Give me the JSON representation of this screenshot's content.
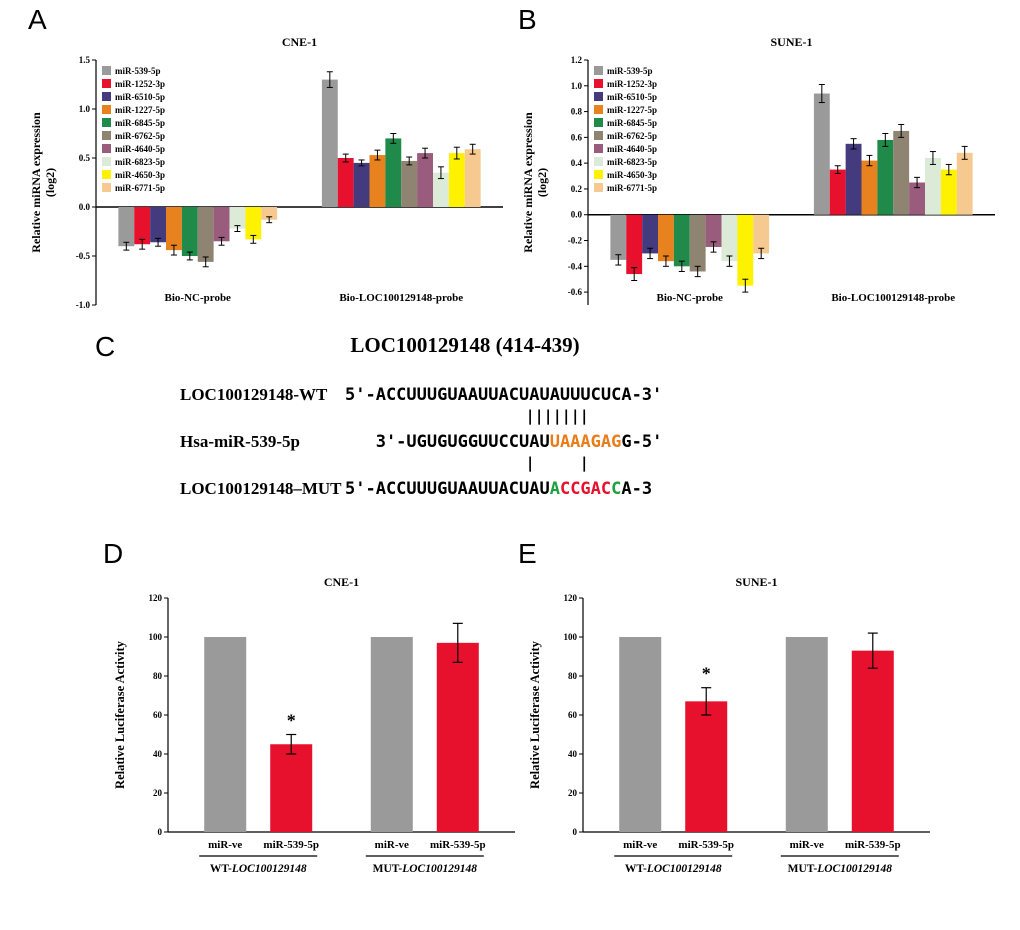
{
  "panel_labels": {
    "A": "A",
    "B": "B",
    "C": "C",
    "D": "D",
    "E": "E"
  },
  "colors": {
    "gray": "#9a9a9a",
    "red": "#e8112d",
    "indigo": "#443b7e",
    "orange": "#e8821e",
    "green": "#1f8a4a",
    "taupe": "#8f8472",
    "plum": "#9a5c7c",
    "palegreen": "#dcead8",
    "yellow": "#fff200",
    "peach": "#f6c990",
    "seq_orange": "#e87d1a",
    "seq_green": "#1aa23c",
    "seq_red": "#e8112d"
  },
  "chart_data": [
    {
      "id": "A",
      "type": "bar",
      "title": "CNE-1",
      "ylabel_line1": "Relative miRNA expression",
      "ylabel_line2": "(log2)",
      "ylim": [
        -1.0,
        1.5
      ],
      "yticks": [
        -1.0,
        -0.5,
        0.0,
        0.5,
        1.0,
        1.5
      ],
      "groups": [
        "Bio-NC-probe",
        "Bio-LOC100129148-probe"
      ],
      "legend_position": "top-left",
      "grid": false,
      "series": [
        {
          "name": "miR-539-5p",
          "color": "#9a9a9a",
          "values": [
            -0.4,
            1.3
          ],
          "errors": [
            0.04,
            0.08
          ]
        },
        {
          "name": "miR-1252-3p",
          "color": "#e8112d",
          "values": [
            -0.38,
            0.5
          ],
          "errors": [
            0.05,
            0.04
          ]
        },
        {
          "name": "miR-6510-5p",
          "color": "#443b7e",
          "values": [
            -0.36,
            0.45
          ],
          "errors": [
            0.04,
            0.03
          ]
        },
        {
          "name": "miR-1227-5p",
          "color": "#e8821e",
          "values": [
            -0.44,
            0.53
          ],
          "errors": [
            0.05,
            0.05
          ]
        },
        {
          "name": "miR-6845-5p",
          "color": "#1f8a4a",
          "values": [
            -0.5,
            0.7
          ],
          "errors": [
            0.04,
            0.05
          ]
        },
        {
          "name": "miR-6762-5p",
          "color": "#8f8472",
          "values": [
            -0.56,
            0.47
          ],
          "errors": [
            0.05,
            0.04
          ]
        },
        {
          "name": "miR-4640-5p",
          "color": "#9a5c7c",
          "values": [
            -0.35,
            0.55
          ],
          "errors": [
            0.04,
            0.05
          ]
        },
        {
          "name": "miR-6823-5p",
          "color": "#dcead8",
          "values": [
            -0.22,
            0.35
          ],
          "errors": [
            0.03,
            0.06
          ]
        },
        {
          "name": "miR-4650-3p",
          "color": "#fff200",
          "values": [
            -0.33,
            0.55
          ],
          "errors": [
            0.04,
            0.06
          ]
        },
        {
          "name": "miR-6771-5p",
          "color": "#f6c990",
          "values": [
            -0.13,
            0.59
          ],
          "errors": [
            0.03,
            0.05
          ]
        }
      ]
    },
    {
      "id": "B",
      "type": "bar",
      "title": "SUNE-1",
      "ylabel_line1": "Relative miRNA expression",
      "ylabel_line2": "(log2)",
      "ylim": [
        -0.7,
        1.2
      ],
      "yticks": [
        -0.6,
        -0.4,
        -0.2,
        0.0,
        0.2,
        0.4,
        0.6,
        0.8,
        1.0,
        1.2
      ],
      "groups": [
        "Bio-NC-probe",
        "Bio-LOC100129148-probe"
      ],
      "legend_position": "top-left",
      "grid": false,
      "series": [
        {
          "name": "miR-539-5p",
          "color": "#9a9a9a",
          "values": [
            -0.35,
            0.94
          ],
          "errors": [
            0.04,
            0.07
          ]
        },
        {
          "name": "miR-1252-3p",
          "color": "#e8112d",
          "values": [
            -0.46,
            0.35
          ],
          "errors": [
            0.05,
            0.03
          ]
        },
        {
          "name": "miR-6510-5p",
          "color": "#443b7e",
          "values": [
            -0.3,
            0.55
          ],
          "errors": [
            0.04,
            0.04
          ]
        },
        {
          "name": "miR-1227-5p",
          "color": "#e8821e",
          "values": [
            -0.36,
            0.42
          ],
          "errors": [
            0.04,
            0.04
          ]
        },
        {
          "name": "miR-6845-5p",
          "color": "#1f8a4a",
          "values": [
            -0.4,
            0.58
          ],
          "errors": [
            0.04,
            0.05
          ]
        },
        {
          "name": "miR-6762-5p",
          "color": "#8f8472",
          "values": [
            -0.44,
            0.65
          ],
          "errors": [
            0.04,
            0.05
          ]
        },
        {
          "name": "miR-4640-5p",
          "color": "#9a5c7c",
          "values": [
            -0.25,
            0.25
          ],
          "errors": [
            0.04,
            0.04
          ]
        },
        {
          "name": "miR-6823-5p",
          "color": "#dcead8",
          "values": [
            -0.36,
            0.44
          ],
          "errors": [
            0.04,
            0.05
          ]
        },
        {
          "name": "miR-4650-3p",
          "color": "#fff200",
          "values": [
            -0.55,
            0.35
          ],
          "errors": [
            0.05,
            0.04
          ]
        },
        {
          "name": "miR-6771-5p",
          "color": "#f6c990",
          "values": [
            -0.3,
            0.48
          ],
          "errors": [
            0.04,
            0.05
          ]
        }
      ]
    },
    {
      "id": "D",
      "type": "bar",
      "title": "CNE-1",
      "ylabel": "Relative Luciferase Activity",
      "ylim": [
        0,
        120
      ],
      "yticks": [
        0,
        20,
        40,
        60,
        80,
        100,
        120
      ],
      "groups": [
        {
          "prefix": "WT-",
          "gene": "LOC100129148"
        },
        {
          "prefix": "MUT-",
          "gene": "LOC100129148"
        }
      ],
      "bars": [
        {
          "label": "miR-ve",
          "value": 100,
          "error": 0,
          "color": "#9a9a9a",
          "sig": ""
        },
        {
          "label": "miR-539-5p",
          "value": 45,
          "error": 5,
          "color": "#e8112d",
          "sig": "*"
        },
        {
          "label": "miR-ve",
          "value": 100,
          "error": 0,
          "color": "#9a9a9a",
          "sig": ""
        },
        {
          "label": "miR-539-5p",
          "value": 97,
          "error": 10,
          "color": "#e8112d",
          "sig": ""
        }
      ]
    },
    {
      "id": "E",
      "type": "bar",
      "title": "SUNE-1",
      "ylabel": "Relative Luciferase Activity",
      "ylim": [
        0,
        120
      ],
      "yticks": [
        0,
        20,
        40,
        60,
        80,
        100,
        120
      ],
      "groups": [
        {
          "prefix": "WT-",
          "gene": "LOC100129148"
        },
        {
          "prefix": "MUT-",
          "gene": "LOC100129148"
        }
      ],
      "bars": [
        {
          "label": "miR-ve",
          "value": 100,
          "error": 0,
          "color": "#9a9a9a",
          "sig": ""
        },
        {
          "label": "miR-539-5p",
          "value": 67,
          "error": 7,
          "color": "#e8112d",
          "sig": "*"
        },
        {
          "label": "miR-ve",
          "value": 100,
          "error": 0,
          "color": "#9a9a9a",
          "sig": ""
        },
        {
          "label": "miR-539-5p",
          "value": 93,
          "error": 9,
          "color": "#e8112d",
          "sig": ""
        }
      ]
    }
  ],
  "alignment": {
    "title": "LOC100129148 (414-439)",
    "rows": [
      {
        "label": "LOC100129148-WT",
        "type": "seq",
        "segments": [
          {
            "text": "5'-ACCUUUGUAAUUACUAUAUUUCUCA-3'",
            "color": "#000000"
          }
        ]
      },
      {
        "label": "",
        "type": "pipes",
        "segments": [
          {
            "text": "                    |||||||",
            "color": "#000000"
          }
        ]
      },
      {
        "label": "Hsa-miR-539-5p",
        "type": "seq",
        "segments": [
          {
            "text": "   3'-UGUGUGGUUCCUAU",
            "color": "#000000"
          },
          {
            "text": "UAAAGAG",
            "color": "#e87d1a"
          },
          {
            "text": "G-5'",
            "color": "#000000"
          }
        ]
      },
      {
        "label": "",
        "type": "pipes",
        "segments": [
          {
            "text": "                    |     |",
            "color": "#000000"
          }
        ]
      },
      {
        "label": "LOC100129148–MUT",
        "type": "seq",
        "segments": [
          {
            "text": "5'-ACCUUUGUAAUUACUAU",
            "color": "#000000"
          },
          {
            "text": "A",
            "color": "#1aa23c"
          },
          {
            "text": "CCGAC",
            "color": "#e8112d"
          },
          {
            "text": "C",
            "color": "#1aa23c"
          },
          {
            "text": "A-3",
            "color": "#000000"
          }
        ]
      }
    ]
  }
}
